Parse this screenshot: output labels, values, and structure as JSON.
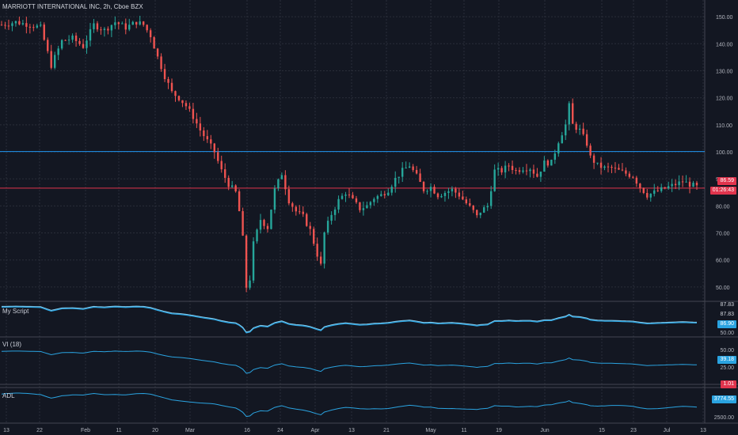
{
  "title": "MARRIOTT INTERNATIONAL INC, 2h, Cboe BZX",
  "colors": {
    "background": "#131722",
    "grid": "#2a2e39",
    "up": "#26a69a",
    "down": "#ef5350",
    "blue_line": "#2196f3",
    "red_line": "#e0344d",
    "indicator": "#2aa3e0",
    "text": "#d1d4dc"
  },
  "price_axis": {
    "ticks": [
      "150.00",
      "140.00",
      "130.00",
      "120.00",
      "110.00",
      "100.00",
      "90.00",
      "80.00",
      "70.00",
      "60.00",
      "50.00"
    ],
    "tick_values": [
      150,
      140,
      130,
      120,
      110,
      100,
      90,
      80,
      70,
      60,
      50
    ],
    "current_price_tag": "86.59",
    "countdown_tag": "01:26:43"
  },
  "horizontal_lines": [
    {
      "name": "resistance",
      "value": 100.1,
      "color": "#2196f3"
    },
    {
      "name": "last-price",
      "value": 86.59,
      "color": "#e0344d"
    }
  ],
  "panes": {
    "script": {
      "label": "My Script",
      "tags": [
        "87.83",
        "87.83",
        "86.90"
      ],
      "axis_ticks": [
        "50.00"
      ]
    },
    "vi": {
      "label": "VI (18)",
      "tags": [
        "39.18",
        "1.01"
      ],
      "axis_ticks": [
        "50.00",
        "25.00"
      ]
    },
    "adl": {
      "label": "ADL",
      "tags": [
        "3774.55"
      ],
      "axis_ticks": [
        "2500.00"
      ]
    }
  },
  "time_axis": [
    "13",
    "22",
    "Feb",
    "11",
    "20",
    "Mar",
    "16",
    "24",
    "Apr",
    "13",
    "21",
    "May",
    "11",
    "19",
    "Jun",
    "15",
    "23",
    "Jul",
    "13"
  ],
  "chart_data": {
    "type": "candlestick",
    "title": "MARRIOTT INTERNATIONAL INC, 2h, Cboe BZX",
    "ylim": [
      45,
      155
    ],
    "price_path": [
      [
        0,
        147
      ],
      [
        4,
        148
      ],
      [
        8,
        147
      ],
      [
        11,
        146
      ],
      [
        14,
        132
      ],
      [
        17,
        141
      ],
      [
        20,
        142
      ],
      [
        23,
        139
      ],
      [
        26,
        147
      ],
      [
        29,
        145
      ],
      [
        32,
        148
      ],
      [
        35,
        146
      ],
      [
        38,
        148
      ],
      [
        40,
        147
      ],
      [
        42,
        143
      ],
      [
        44,
        135
      ],
      [
        46,
        128
      ],
      [
        48,
        122
      ],
      [
        50,
        120
      ],
      [
        52,
        117
      ],
      [
        54,
        113
      ],
      [
        56,
        108
      ],
      [
        58,
        104
      ],
      [
        60,
        100
      ],
      [
        62,
        93
      ],
      [
        64,
        88
      ],
      [
        66,
        85
      ],
      [
        67,
        78
      ],
      [
        68,
        68
      ],
      [
        69,
        50
      ],
      [
        70,
        53
      ],
      [
        71,
        66
      ],
      [
        73,
        75
      ],
      [
        75,
        72
      ],
      [
        77,
        86
      ],
      [
        79,
        92
      ],
      [
        81,
        82
      ],
      [
        83,
        78
      ],
      [
        85,
        76
      ],
      [
        87,
        71
      ],
      [
        89,
        62
      ],
      [
        90,
        58
      ],
      [
        91,
        70
      ],
      [
        93,
        77
      ],
      [
        95,
        82
      ],
      [
        97,
        85
      ],
      [
        99,
        82
      ],
      [
        101,
        79
      ],
      [
        103,
        80
      ],
      [
        105,
        83
      ],
      [
        107,
        84
      ],
      [
        109,
        86
      ],
      [
        111,
        90
      ],
      [
        113,
        93
      ],
      [
        115,
        95
      ],
      [
        117,
        91
      ],
      [
        119,
        86
      ],
      [
        121,
        87
      ],
      [
        123,
        84
      ],
      [
        125,
        85
      ],
      [
        127,
        86
      ],
      [
        129,
        84
      ],
      [
        131,
        81
      ],
      [
        133,
        78
      ],
      [
        134,
        76
      ],
      [
        135,
        78
      ],
      [
        137,
        80
      ],
      [
        139,
        93
      ],
      [
        141,
        93
      ],
      [
        143,
        95
      ],
      [
        145,
        93
      ],
      [
        147,
        94
      ],
      [
        149,
        94
      ],
      [
        151,
        91
      ],
      [
        153,
        96
      ],
      [
        155,
        96
      ],
      [
        157,
        104
      ],
      [
        159,
        110
      ],
      [
        160,
        117
      ],
      [
        161,
        110
      ],
      [
        163,
        108
      ],
      [
        165,
        103
      ],
      [
        166,
        98
      ],
      [
        168,
        95
      ],
      [
        170,
        94
      ],
      [
        172,
        94
      ],
      [
        174,
        93
      ],
      [
        176,
        92
      ],
      [
        178,
        91
      ],
      [
        180,
        87
      ],
      [
        182,
        84
      ],
      [
        184,
        85
      ],
      [
        186,
        86
      ],
      [
        188,
        87
      ],
      [
        190,
        88
      ],
      [
        192,
        89
      ],
      [
        194,
        88
      ],
      [
        196,
        87
      ]
    ],
    "indicators": {
      "my_script_last": 86.9,
      "vi_last": 39.18,
      "adl_last": 3774.55
    }
  }
}
